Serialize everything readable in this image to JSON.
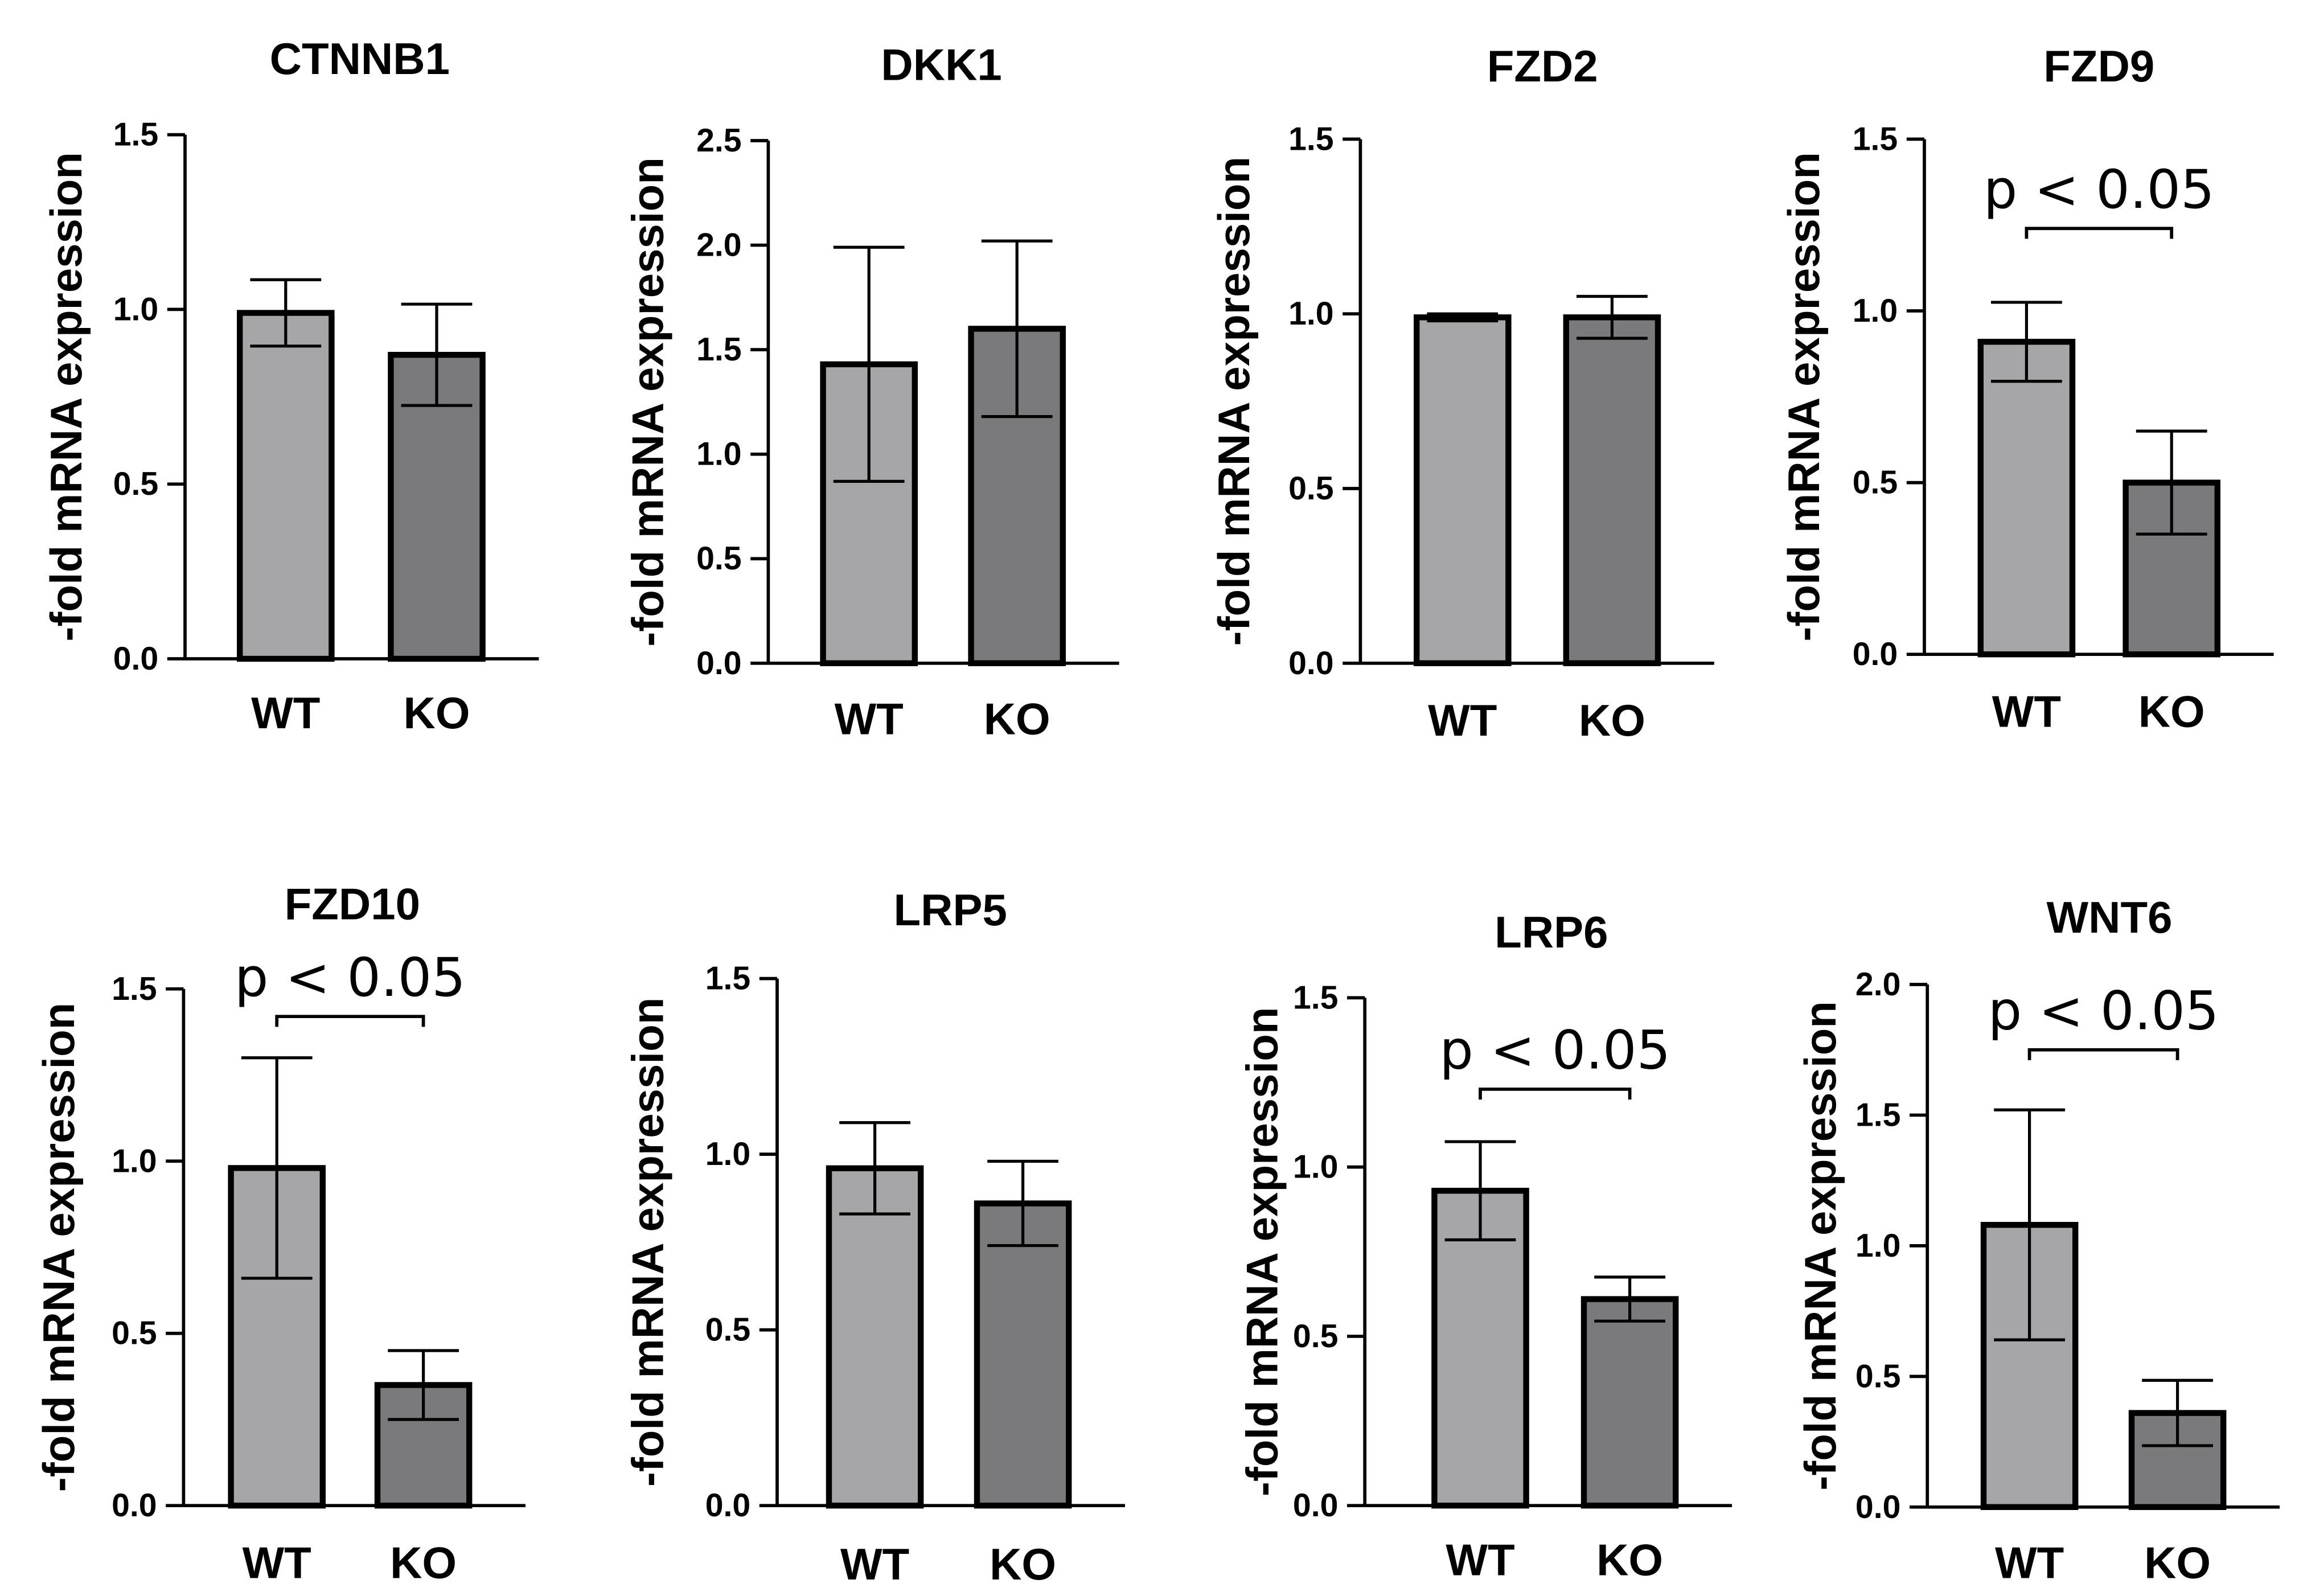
{
  "figure": {
    "colors": {
      "wt_fill": "#a6a6a8",
      "ko_fill": "#7a7a7c",
      "stroke": "#000000",
      "text": "#000000"
    }
  },
  "chart_data": [
    {
      "type": "bar",
      "title": "CTNNB1",
      "ylabel": "-fold mRNA expression",
      "categories": [
        "WT",
        "KO"
      ],
      "values": [
        0.99,
        0.87
      ],
      "errors": [
        0.095,
        0.145
      ],
      "ylim": [
        0,
        1.5
      ],
      "yticks": [
        0.0,
        0.5,
        1.0,
        1.5
      ],
      "tick_labels": [
        "0.0",
        "0.5",
        "1.0",
        "1.5"
      ],
      "significance": null
    },
    {
      "type": "bar",
      "title": "DKK1",
      "ylabel": "-fold mRNA expression",
      "categories": [
        "WT",
        "KO"
      ],
      "values": [
        1.43,
        1.6
      ],
      "errors": [
        0.56,
        0.42
      ],
      "ylim": [
        0,
        2.5
      ],
      "yticks": [
        0.0,
        0.5,
        1.0,
        1.5,
        2.0,
        2.5
      ],
      "tick_labels": [
        "0.0",
        "0.5",
        "1.0",
        "1.5",
        "2.0",
        "2.5"
      ],
      "significance": null
    },
    {
      "type": "bar",
      "title": "FZD2",
      "ylabel": "-fold mRNA expression",
      "categories": [
        "WT",
        "KO"
      ],
      "values": [
        0.99,
        0.99
      ],
      "errors": [
        0.01,
        0.06
      ],
      "ylim": [
        0,
        1.5
      ],
      "yticks": [
        0.0,
        0.5,
        1.0,
        1.5
      ],
      "tick_labels": [
        "0.0",
        "0.5",
        "1.0",
        "1.5"
      ],
      "significance": null
    },
    {
      "type": "bar",
      "title": "FZD9",
      "ylabel": "-fold mRNA expression",
      "categories": [
        "WT",
        "KO"
      ],
      "values": [
        0.91,
        0.5
      ],
      "errors": [
        0.115,
        0.15
      ],
      "ylim": [
        0,
        1.5
      ],
      "yticks": [
        0.0,
        0.5,
        1.0,
        1.5
      ],
      "tick_labels": [
        "0.0",
        "0.5",
        "1.0",
        "1.5"
      ],
      "significance": {
        "label": "p < 0.05",
        "level": 1.24
      }
    },
    {
      "type": "bar",
      "title": "FZD10",
      "ylabel": "-fold mRNA expression",
      "categories": [
        "WT",
        "KO"
      ],
      "values": [
        0.98,
        0.35
      ],
      "errors": [
        0.32,
        0.1
      ],
      "ylim": [
        0,
        1.5
      ],
      "yticks": [
        0.0,
        0.5,
        1.0,
        1.5
      ],
      "tick_labels": [
        "0.0",
        "0.5",
        "1.0",
        "1.5"
      ],
      "significance": {
        "label": "p < 0.05",
        "level": 1.42
      }
    },
    {
      "type": "bar",
      "title": "LRP5",
      "ylabel": "-fold mRNA expression",
      "categories": [
        "WT",
        "KO"
      ],
      "values": [
        0.96,
        0.86
      ],
      "errors": [
        0.13,
        0.12
      ],
      "ylim": [
        0,
        1.5
      ],
      "yticks": [
        0.0,
        0.5,
        1.0,
        1.5
      ],
      "tick_labels": [
        "0.0",
        "0.5",
        "1.0",
        "1.5"
      ],
      "significance": null
    },
    {
      "type": "bar",
      "title": "LRP6",
      "ylabel": "-fold mRNA expression",
      "categories": [
        "WT",
        "KO"
      ],
      "values": [
        0.93,
        0.61
      ],
      "errors": [
        0.145,
        0.065
      ],
      "ylim": [
        0,
        1.5
      ],
      "yticks": [
        0.0,
        0.5,
        1.0,
        1.5
      ],
      "tick_labels": [
        "0.0",
        "0.5",
        "1.0",
        "1.5"
      ],
      "significance": {
        "label": "p < 0.05",
        "level": 1.23
      }
    },
    {
      "type": "bar",
      "title": "WNT6",
      "ylabel": "-fold mRNA expression",
      "categories": [
        "WT",
        "KO"
      ],
      "values": [
        1.08,
        0.36
      ],
      "errors": [
        0.44,
        0.125
      ],
      "ylim": [
        0,
        2.0
      ],
      "yticks": [
        0.0,
        0.5,
        1.0,
        1.5,
        2.0
      ],
      "tick_labels": [
        "0.0",
        "0.5",
        "1.0",
        "1.5",
        "2.0"
      ],
      "significance": {
        "label": "p < 0.05",
        "level": 1.75
      }
    }
  ]
}
